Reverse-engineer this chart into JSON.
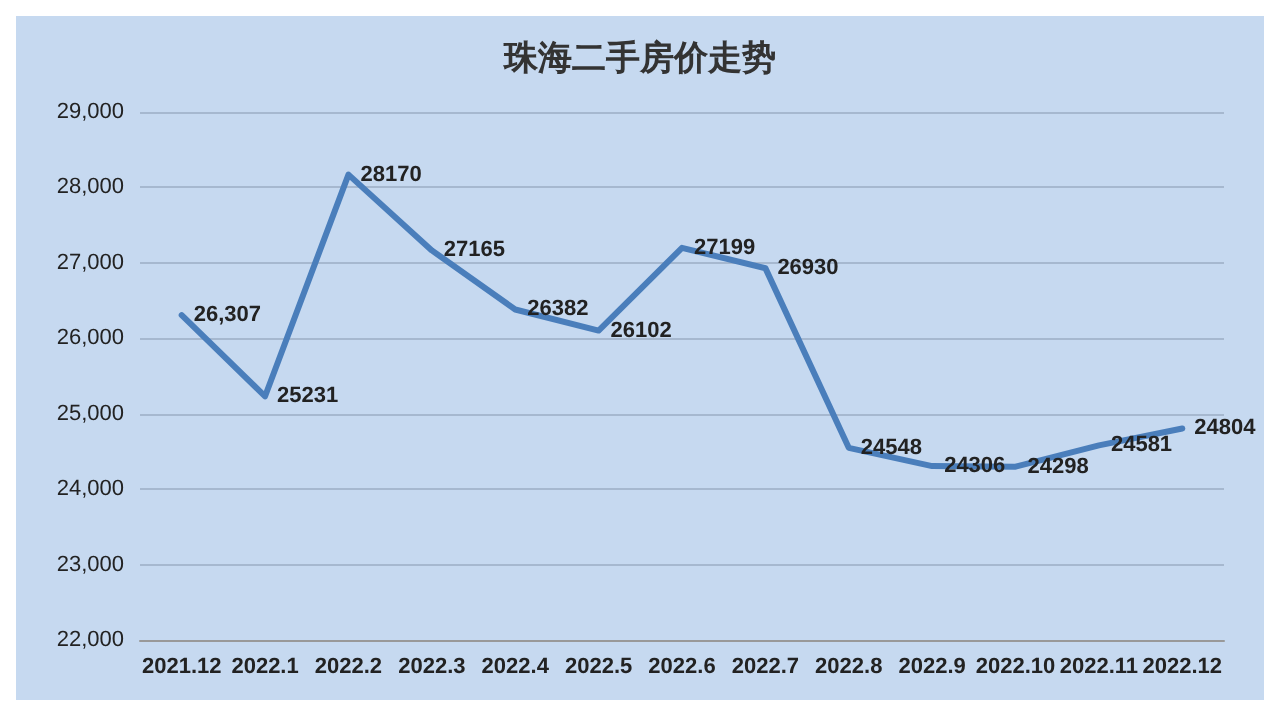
{
  "chart_data": {
    "type": "line",
    "title": "珠海二手房价走势",
    "categories": [
      "2021.12",
      "2022.1",
      "2022.2",
      "2022.3",
      "2022.4",
      "2022.5",
      "2022.6",
      "2022.7",
      "2022.8",
      "2022.9",
      "2022.10",
      "2022.11",
      "2022.12"
    ],
    "series": [
      {
        "color": "#4a7ebb",
        "values": [
          26307,
          25231,
          28170,
          27165,
          26382,
          26102,
          27199,
          26930,
          24548,
          24306,
          24298,
          24581,
          24804
        ]
      }
    ],
    "value_labels": [
      "26,307",
      "25231",
      "28170",
      "27165",
      "26382",
      "26102",
      "27199",
      "26930",
      "24548",
      "24306",
      "24298",
      "24581",
      "24804"
    ],
    "ylim": [
      22000,
      29000
    ],
    "yticks": [
      {
        "value": 22000,
        "label": "22,000"
      },
      {
        "value": 23000,
        "label": "23,000"
      },
      {
        "value": 24000,
        "label": "24,000"
      },
      {
        "value": 25000,
        "label": "25,000"
      },
      {
        "value": 26000,
        "label": "26,000"
      },
      {
        "value": 27000,
        "label": "27,000"
      },
      {
        "value": 28000,
        "label": "28,000"
      },
      {
        "value": 29000,
        "label": "29,000"
      }
    ],
    "grid": "y",
    "marker": "none",
    "line_style": "solid"
  }
}
